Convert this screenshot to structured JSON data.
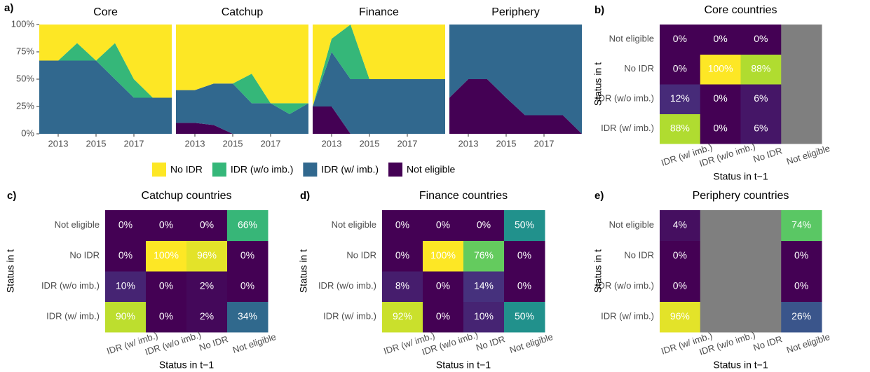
{
  "chart_data": [
    {
      "type": "stacked_area",
      "panel": "a)",
      "x": [
        2012,
        2013,
        2014,
        2015,
        2016,
        2017,
        2018,
        2019
      ],
      "xlim": [
        2012,
        2019
      ],
      "xticks": [
        2013,
        2015,
        2017
      ],
      "ylim": [
        0,
        100
      ],
      "yticks": [
        {
          "value": 0,
          "label": "0%"
        },
        {
          "value": 25,
          "label": "25%"
        },
        {
          "value": 50,
          "label": "50%"
        },
        {
          "value": 75,
          "label": "75%"
        },
        {
          "value": 100,
          "label": "100%"
        }
      ],
      "series": [
        {
          "name": "No IDR",
          "color": "#fde725"
        },
        {
          "name": "IDR (w/o imb.)",
          "color": "#35b779"
        },
        {
          "name": "IDR (w/ imb.)",
          "color": "#31688e"
        },
        {
          "name": "Not eligible",
          "color": "#440154"
        }
      ],
      "facets": [
        {
          "title": "Core",
          "values": [
            [
              33,
              33,
              17,
              33,
              17,
              50,
              67,
              67
            ],
            [
              0,
              0,
              16,
              0,
              33,
              17,
              0,
              0
            ],
            [
              67,
              67,
              67,
              67,
              50,
              33,
              33,
              33
            ],
            [
              0,
              0,
              0,
              0,
              0,
              0,
              0,
              0
            ]
          ]
        },
        {
          "title": "Catchup",
          "values": [
            [
              60,
              60,
              54,
              54,
              45,
              72,
              72,
              72
            ],
            [
              0,
              0,
              0,
              0,
              27,
              0,
              10,
              0
            ],
            [
              30,
              30,
              38,
              46,
              28,
              28,
              18,
              28
            ],
            [
              10,
              10,
              8,
              0,
              0,
              0,
              0,
              0
            ]
          ]
        },
        {
          "title": "Finance",
          "values": [
            [
              75,
              13,
              0,
              50,
              50,
              50,
              50,
              50
            ],
            [
              0,
              12,
              50,
              0,
              0,
              0,
              0,
              0
            ],
            [
              0,
              50,
              50,
              50,
              50,
              50,
              50,
              50
            ],
            [
              25,
              25,
              0,
              0,
              0,
              0,
              0,
              0
            ]
          ]
        },
        {
          "title": "Periphery",
          "values": [
            [
              0,
              0,
              0,
              0,
              0,
              0,
              0,
              0
            ],
            [
              0,
              0,
              0,
              0,
              0,
              0,
              0,
              0
            ],
            [
              67,
              50,
              50,
              67,
              83,
              83,
              83,
              100
            ],
            [
              33,
              50,
              50,
              33,
              17,
              17,
              17,
              0
            ]
          ]
        }
      ]
    },
    {
      "type": "heatmap",
      "panel": "b)",
      "title": "Core countries",
      "xlabel": "Status in t−1",
      "ylabel": "Status in t",
      "xcategories": [
        "IDR (w/ imb.)",
        "IDR (w/o imb.)",
        "No IDR",
        "Not eligible"
      ],
      "ycategories": [
        "IDR (w/ imb.)",
        "IDR (w/o imb.)",
        "No IDR",
        "Not eligible"
      ],
      "z": [
        [
          88,
          0,
          6,
          null
        ],
        [
          12,
          0,
          6,
          null
        ],
        [
          0,
          100,
          88,
          null
        ],
        [
          0,
          0,
          0,
          null
        ]
      ],
      "value_labels": [
        [
          "88%",
          "0%",
          "6%",
          null
        ],
        [
          "12%",
          "0%",
          "6%",
          null
        ],
        [
          "0%",
          "100%",
          "88%",
          null
        ],
        [
          "0%",
          "0%",
          "0%",
          null
        ]
      ],
      "zlim": [
        0,
        100
      ],
      "na_color": "#7f7f7f",
      "colorscale": [
        "#440154",
        "#472d7b",
        "#3b528b",
        "#2c728e",
        "#21918c",
        "#28ae80",
        "#5ec962",
        "#addc30",
        "#fde725"
      ]
    },
    {
      "type": "heatmap",
      "panel": "c)",
      "title": "Catchup countries",
      "xlabel": "Status in t−1",
      "ylabel": "Status in t",
      "xcategories": [
        "IDR (w/ imb.)",
        "IDR (w/o imb.)",
        "No IDR",
        "Not eligible"
      ],
      "ycategories": [
        "IDR (w/ imb.)",
        "IDR (w/o imb.)",
        "No IDR",
        "Not eligible"
      ],
      "z": [
        [
          90,
          0,
          2,
          34
        ],
        [
          10,
          0,
          2,
          0
        ],
        [
          0,
          100,
          96,
          0
        ],
        [
          0,
          0,
          0,
          66
        ]
      ],
      "value_labels": [
        [
          "90%",
          "0%",
          "2%",
          "34%"
        ],
        [
          "10%",
          "0%",
          "2%",
          "0%"
        ],
        [
          "0%",
          "100%",
          "96%",
          "0%"
        ],
        [
          "0%",
          "0%",
          "0%",
          "66%"
        ]
      ],
      "zlim": [
        0,
        100
      ],
      "na_color": "#7f7f7f",
      "colorscale": [
        "#440154",
        "#472d7b",
        "#3b528b",
        "#2c728e",
        "#21918c",
        "#28ae80",
        "#5ec962",
        "#addc30",
        "#fde725"
      ]
    },
    {
      "type": "heatmap",
      "panel": "d)",
      "title": "Finance countries",
      "xlabel": "Status in t−1",
      "ylabel": "Status in t",
      "xcategories": [
        "IDR (w/ imb.)",
        "IDR (w/o imb.)",
        "No IDR",
        "Not eligible"
      ],
      "ycategories": [
        "IDR (w/ imb.)",
        "IDR (w/o imb.)",
        "No IDR",
        "Not eligible"
      ],
      "z": [
        [
          92,
          0,
          10,
          50
        ],
        [
          8,
          0,
          14,
          0
        ],
        [
          0,
          100,
          76,
          0
        ],
        [
          0,
          0,
          0,
          50
        ]
      ],
      "value_labels": [
        [
          "92%",
          "0%",
          "10%",
          "50%"
        ],
        [
          "8%",
          "0%",
          "14%",
          "0%"
        ],
        [
          "0%",
          "100%",
          "76%",
          "0%"
        ],
        [
          "0%",
          "0%",
          "0%",
          "50%"
        ]
      ],
      "zlim": [
        0,
        100
      ],
      "na_color": "#7f7f7f",
      "colorscale": [
        "#440154",
        "#472d7b",
        "#3b528b",
        "#2c728e",
        "#21918c",
        "#28ae80",
        "#5ec962",
        "#addc30",
        "#fde725"
      ]
    },
    {
      "type": "heatmap",
      "panel": "e)",
      "title": "Periphery countries",
      "xlabel": "Status in t−1",
      "ylabel": "Status in t",
      "xcategories": [
        "IDR (w/ imb.)",
        "IDR (w/o imb.)",
        "No IDR",
        "Not eligible"
      ],
      "ycategories": [
        "IDR (w/ imb.)",
        "IDR (w/o imb.)",
        "No IDR",
        "Not eligible"
      ],
      "z": [
        [
          96,
          null,
          null,
          26
        ],
        [
          0,
          null,
          null,
          0
        ],
        [
          0,
          null,
          null,
          0
        ],
        [
          4,
          null,
          null,
          74
        ]
      ],
      "value_labels": [
        [
          "96%",
          null,
          null,
          "26%"
        ],
        [
          "0%",
          null,
          null,
          "0%"
        ],
        [
          "0%",
          null,
          null,
          "0%"
        ],
        [
          "4%",
          null,
          null,
          "74%"
        ]
      ],
      "zlim": [
        0,
        100
      ],
      "na_color": "#7f7f7f",
      "colorscale": [
        "#440154",
        "#472d7b",
        "#3b528b",
        "#2c728e",
        "#21918c",
        "#28ae80",
        "#5ec962",
        "#addc30",
        "#fde725"
      ]
    }
  ]
}
